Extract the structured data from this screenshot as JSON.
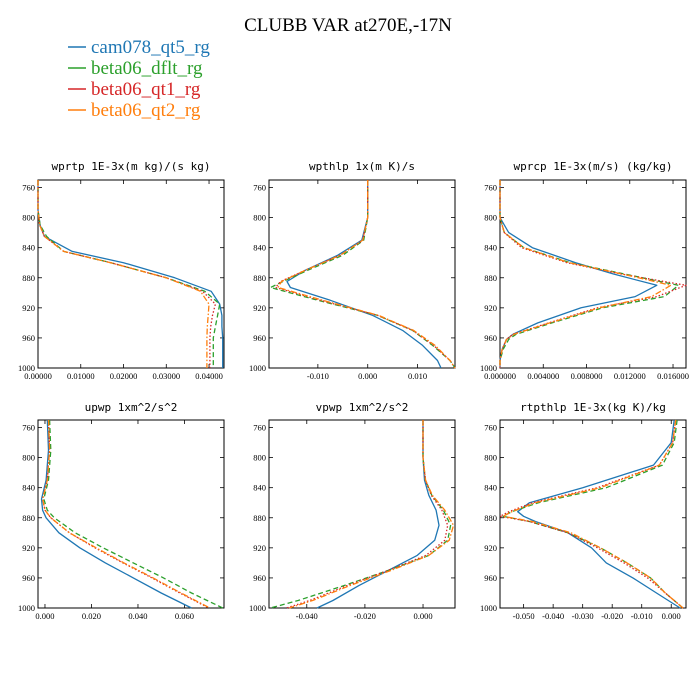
{
  "figure": {
    "title": "CLUBB VAR at270E,-17N"
  },
  "legend": [
    {
      "name": "cam078_qt5_rg",
      "color": "#1f77b4",
      "dash": "solid"
    },
    {
      "name": "beta06_dflt_rg",
      "color": "#2ca02c",
      "dash": "dash"
    },
    {
      "name": "beta06_qt1_rg",
      "color": "#d62728",
      "dash": "dot"
    },
    {
      "name": "beta06_qt2_rg",
      "color": "#ff7f0e",
      "dash": "dashdot"
    }
  ],
  "chart_data": [
    {
      "type": "line",
      "title": "wprtp  1E-3x(m kg)/(s kg)",
      "xlim": [
        0,
        0.0435
      ],
      "ylim": [
        1000,
        750
      ],
      "xticks": [
        0,
        0.01,
        0.02,
        0.03,
        0.04
      ],
      "xtick_labels": [
        "0.00000",
        "0.01000",
        "0.02000",
        "0.03000",
        "0.04000"
      ],
      "yticks": [
        760,
        800,
        840,
        880,
        920,
        960,
        1000
      ],
      "ytick_labels": [
        "760",
        "800",
        "840",
        "880",
        "920",
        "960",
        "1000"
      ],
      "series": [
        {
          "y": [
            750,
            790,
            810,
            825,
            845,
            860,
            880,
            898,
            915,
            930,
            945,
            960,
            975,
            990,
            1000
          ],
          "x": [
            0.0,
            0.0,
            0.0005,
            0.0015,
            0.008,
            0.02,
            0.032,
            0.0405,
            0.0425,
            0.043,
            0.043,
            0.0432,
            0.0432,
            0.0432,
            0.0432
          ]
        },
        {
          "y": [
            750,
            790,
            810,
            825,
            845,
            860,
            880,
            898,
            915,
            930,
            945,
            960,
            975,
            990,
            1000
          ],
          "x": [
            0.0,
            0.0,
            0.0005,
            0.002,
            0.006,
            0.017,
            0.03,
            0.039,
            0.0425,
            0.042,
            0.0415,
            0.041,
            0.041,
            0.041,
            0.041
          ]
        },
        {
          "y": [
            750,
            790,
            810,
            825,
            845,
            860,
            880,
            898,
            915,
            930,
            945,
            960,
            975,
            990,
            1000
          ],
          "x": [
            0.0,
            0.0,
            0.0004,
            0.0015,
            0.006,
            0.017,
            0.03,
            0.0385,
            0.0415,
            0.0408,
            0.0404,
            0.0402,
            0.0402,
            0.0402,
            0.0402
          ]
        },
        {
          "y": [
            750,
            790,
            810,
            825,
            845,
            860,
            880,
            898,
            915,
            930,
            945,
            960,
            975,
            990,
            1000
          ],
          "x": [
            0.0,
            0.0,
            0.0004,
            0.0015,
            0.006,
            0.017,
            0.03,
            0.038,
            0.04,
            0.0398,
            0.0396,
            0.0395,
            0.0395,
            0.0395,
            0.0395
          ]
        }
      ]
    },
    {
      "type": "line",
      "title": "wpthlp  1x(m K)/s",
      "xlim": [
        -0.0198,
        0.0175
      ],
      "ylim": [
        1000,
        750
      ],
      "xticks": [
        -0.01,
        0.0,
        0.01
      ],
      "xtick_labels": [
        "-0.010",
        "0.000",
        "0.010"
      ],
      "yticks": [
        760,
        800,
        840,
        880,
        920,
        960,
        1000
      ],
      "ytick_labels": [
        "760",
        "800",
        "840",
        "880",
        "920",
        "960",
        "1000"
      ],
      "series": [
        {
          "y": [
            750,
            800,
            830,
            850,
            870,
            885,
            893,
            910,
            930,
            950,
            970,
            990,
            1000
          ],
          "x": [
            0.0,
            0.0,
            -0.0012,
            -0.006,
            -0.0125,
            -0.0162,
            -0.0155,
            -0.0075,
            0.001,
            0.007,
            0.011,
            0.014,
            0.0147
          ]
        },
        {
          "y": [
            750,
            800,
            830,
            850,
            870,
            885,
            893,
            910,
            930,
            950,
            970,
            990,
            1000
          ],
          "x": [
            0.0,
            0.0,
            -0.0008,
            -0.005,
            -0.012,
            -0.017,
            -0.0195,
            -0.01,
            0.002,
            0.009,
            0.013,
            0.0165,
            0.0175
          ]
        },
        {
          "y": [
            750,
            800,
            830,
            850,
            870,
            885,
            893,
            910,
            930,
            950,
            970,
            990,
            1000
          ],
          "x": [
            0.0,
            0.0,
            -0.001,
            -0.0055,
            -0.0125,
            -0.0175,
            -0.0185,
            -0.0095,
            0.002,
            0.009,
            0.0132,
            0.0165,
            0.0175
          ]
        },
        {
          "y": [
            750,
            800,
            830,
            850,
            870,
            885,
            893,
            910,
            930,
            950,
            970,
            990,
            1000
          ],
          "x": [
            0.0,
            0.0,
            -0.001,
            -0.0055,
            -0.0125,
            -0.0173,
            -0.018,
            -0.009,
            0.0022,
            0.0092,
            0.0135,
            0.0165,
            0.0175
          ]
        }
      ]
    },
    {
      "type": "line",
      "title": "wprcp  1E-3x(m/s) (kg/kg)",
      "xlim": [
        0,
        0.0172
      ],
      "ylim": [
        1000,
        750
      ],
      "xticks": [
        0,
        0.004,
        0.008,
        0.012,
        0.016
      ],
      "xtick_labels": [
        "0.000000",
        "0.004000",
        "0.008000",
        "0.012000",
        "0.016000"
      ],
      "yticks": [
        760,
        800,
        840,
        880,
        920,
        960,
        1000
      ],
      "ytick_labels": [
        "760",
        "800",
        "840",
        "880",
        "920",
        "960",
        "1000"
      ],
      "series": [
        {
          "y": [
            750,
            800,
            820,
            840,
            860,
            875,
            890,
            905,
            920,
            940,
            955,
            962,
            975,
            990,
            1000
          ],
          "x": [
            0.0,
            0.0,
            0.0008,
            0.003,
            0.007,
            0.0105,
            0.0145,
            0.0125,
            0.0075,
            0.0035,
            0.0012,
            0.0006,
            0.0002,
            0.0,
            0.0
          ]
        },
        {
          "y": [
            750,
            800,
            820,
            840,
            860,
            875,
            890,
            905,
            920,
            940,
            955,
            962,
            975,
            990,
            1000
          ],
          "x": [
            0.0,
            0.0,
            0.0004,
            0.0022,
            0.0065,
            0.0115,
            0.0165,
            0.0152,
            0.0095,
            0.0048,
            0.0015,
            0.0008,
            0.0003,
            0.0,
            0.0
          ]
        },
        {
          "y": [
            750,
            800,
            820,
            840,
            860,
            875,
            890,
            905,
            920,
            940,
            955,
            962,
            975,
            990,
            1000
          ],
          "x": [
            0.0,
            0.0,
            0.0004,
            0.002,
            0.0062,
            0.0112,
            0.0172,
            0.0145,
            0.009,
            0.0045,
            0.0012,
            0.0006,
            0.0002,
            0.0,
            0.0
          ]
        },
        {
          "y": [
            750,
            800,
            820,
            840,
            860,
            875,
            890,
            905,
            920,
            940,
            955,
            962,
            975,
            990,
            1000
          ],
          "x": [
            0.0,
            0.0,
            0.0004,
            0.0022,
            0.0064,
            0.0113,
            0.0158,
            0.014,
            0.0092,
            0.0046,
            0.0013,
            0.0006,
            0.0002,
            0.0,
            0.0
          ]
        }
      ]
    },
    {
      "type": "line",
      "title": "upwp  1xm^2/s^2",
      "xlim": [
        -0.003,
        0.077
      ],
      "ylim": [
        1000,
        750
      ],
      "xticks": [
        0,
        0.02,
        0.04,
        0.06
      ],
      "xtick_labels": [
        "0.000",
        "0.020",
        "0.040",
        "0.060"
      ],
      "yticks": [
        760,
        800,
        840,
        880,
        920,
        960,
        1000
      ],
      "ytick_labels": [
        "760",
        "800",
        "840",
        "880",
        "920",
        "960",
        "1000"
      ],
      "series": [
        {
          "y": [
            750,
            790,
            830,
            855,
            870,
            880,
            900,
            920,
            940,
            960,
            980,
            1000
          ],
          "x": [
            0.001,
            0.0015,
            0.0005,
            -0.0015,
            -0.001,
            0.0005,
            0.006,
            0.015,
            0.026,
            0.038,
            0.05,
            0.063
          ]
        },
        {
          "y": [
            750,
            790,
            830,
            855,
            870,
            880,
            900,
            920,
            940,
            960,
            980,
            1000
          ],
          "x": [
            0.002,
            0.0025,
            0.0015,
            -0.0005,
            0.001,
            0.004,
            0.013,
            0.025,
            0.038,
            0.051,
            0.063,
            0.0765
          ]
        },
        {
          "y": [
            750,
            790,
            830,
            855,
            870,
            880,
            900,
            920,
            940,
            960,
            980,
            1000
          ],
          "x": [
            0.0015,
            0.002,
            0.001,
            -0.001,
            0.0,
            0.0025,
            0.0105,
            0.0215,
            0.0335,
            0.046,
            0.058,
            0.0705
          ]
        },
        {
          "y": [
            750,
            790,
            830,
            855,
            870,
            880,
            900,
            920,
            940,
            960,
            980,
            1000
          ],
          "x": [
            0.0015,
            0.002,
            0.001,
            -0.001,
            0.0,
            0.0025,
            0.0105,
            0.022,
            0.034,
            0.0465,
            0.0585,
            0.071
          ]
        }
      ]
    },
    {
      "type": "line",
      "title": "vpwp  1xm^2/s^2",
      "xlim": [
        -0.053,
        0.011
      ],
      "ylim": [
        1000,
        750
      ],
      "xticks": [
        -0.04,
        -0.02,
        0.0
      ],
      "xtick_labels": [
        "-0.040",
        "-0.020",
        "0.000"
      ],
      "yticks": [
        760,
        800,
        840,
        880,
        920,
        960,
        1000
      ],
      "ytick_labels": [
        "760",
        "800",
        "840",
        "880",
        "920",
        "960",
        "1000"
      ],
      "series": [
        {
          "y": [
            750,
            800,
            830,
            850,
            870,
            890,
            910,
            930,
            950,
            970,
            990,
            1000
          ],
          "x": [
            0.0,
            0.0,
            0.0005,
            0.002,
            0.0045,
            0.0055,
            0.004,
            -0.002,
            -0.012,
            -0.022,
            -0.031,
            -0.0365
          ]
        },
        {
          "y": [
            750,
            800,
            830,
            850,
            870,
            890,
            910,
            930,
            950,
            970,
            990,
            1000
          ],
          "x": [
            0.0,
            0.0,
            0.0008,
            0.003,
            0.007,
            0.0095,
            0.0085,
            0.002,
            -0.012,
            -0.027,
            -0.043,
            -0.0525
          ]
        },
        {
          "y": [
            750,
            800,
            830,
            850,
            870,
            890,
            910,
            930,
            950,
            970,
            990,
            1000
          ],
          "x": [
            0.0,
            0.0,
            0.0008,
            0.0028,
            0.0065,
            0.0085,
            0.0075,
            0.001,
            -0.012,
            -0.026,
            -0.039,
            -0.047
          ]
        },
        {
          "y": [
            750,
            800,
            830,
            850,
            870,
            890,
            910,
            930,
            950,
            970,
            990,
            1000
          ],
          "x": [
            0.0,
            0.0,
            0.0009,
            0.0032,
            0.0075,
            0.0105,
            0.009,
            0.002,
            -0.011,
            -0.025,
            -0.038,
            -0.046
          ]
        }
      ]
    },
    {
      "type": "line",
      "title": "rtpthlp  1E-3x(kg K)/kg",
      "xlim": [
        -0.058,
        0.005
      ],
      "ylim": [
        1000,
        750
      ],
      "xticks": [
        -0.05,
        -0.04,
        -0.03,
        -0.02,
        -0.01,
        0.0
      ],
      "xtick_labels": [
        "-0.050",
        "-0.040",
        "-0.030",
        "-0.020",
        "-0.010",
        "0.000"
      ],
      "yticks": [
        760,
        800,
        840,
        880,
        920,
        960,
        1000
      ],
      "ytick_labels": [
        "760",
        "800",
        "840",
        "880",
        "920",
        "960",
        "1000"
      ],
      "series": [
        {
          "y": [
            750,
            780,
            810,
            840,
            860,
            872,
            878,
            885,
            900,
            920,
            940,
            960,
            980,
            1000
          ],
          "x": [
            0.001,
            0.0,
            -0.006,
            -0.03,
            -0.048,
            -0.052,
            -0.05,
            -0.046,
            -0.035,
            -0.027,
            -0.022,
            -0.013,
            -0.005,
            0.003
          ]
        },
        {
          "y": [
            750,
            780,
            810,
            840,
            860,
            872,
            878,
            885,
            900,
            920,
            940,
            960,
            980,
            1000
          ],
          "x": [
            0.002,
            0.001,
            -0.003,
            -0.022,
            -0.045,
            -0.054,
            -0.057,
            -0.048,
            -0.035,
            -0.024,
            -0.015,
            -0.007,
            -0.002,
            0.004
          ]
        },
        {
          "y": [
            750,
            780,
            810,
            840,
            860,
            872,
            878,
            885,
            900,
            920,
            940,
            960,
            980,
            1000
          ],
          "x": [
            0.0015,
            0.0005,
            -0.004,
            -0.025,
            -0.047,
            -0.055,
            -0.058,
            -0.048,
            -0.035,
            -0.025,
            -0.016,
            -0.008,
            -0.002,
            0.004
          ]
        },
        {
          "y": [
            750,
            780,
            810,
            840,
            860,
            872,
            878,
            885,
            900,
            920,
            940,
            960,
            980,
            1000
          ],
          "x": [
            0.0015,
            0.0005,
            -0.004,
            -0.024,
            -0.046,
            -0.054,
            -0.057,
            -0.047,
            -0.034,
            -0.024,
            -0.015,
            -0.007,
            -0.002,
            0.004
          ]
        }
      ]
    }
  ]
}
